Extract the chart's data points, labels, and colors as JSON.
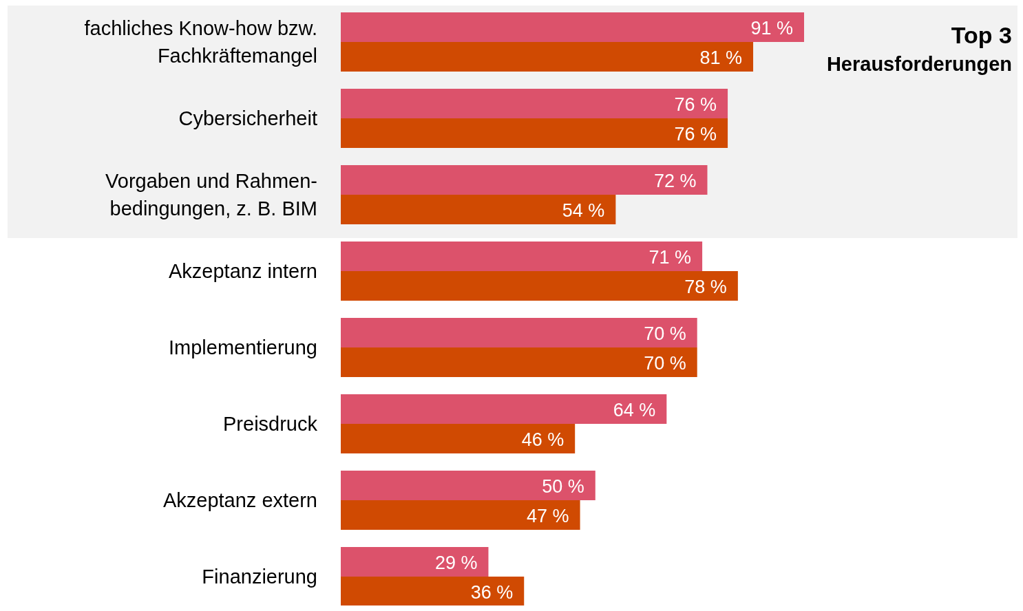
{
  "chart_data": {
    "type": "bar",
    "orientation": "horizontal",
    "categories": [
      "fachliches Know-how bzw.\nFachkräftemangel",
      "Cybersicherheit",
      "Vorgaben und Rahmen-\nbedingungen, z. B. BIM",
      "Akzeptanz intern",
      "Implementierung",
      "Preisdruck",
      "Akzeptanz extern",
      "Finanzierung"
    ],
    "series": [
      {
        "color": "#dc526b",
        "values": [
          91,
          76,
          72,
          71,
          70,
          64,
          50,
          29
        ],
        "value_labels": [
          "91 %",
          "76 %",
          "72 %",
          "71 %",
          "70 %",
          "64 %",
          "50 %",
          "29 %"
        ]
      },
      {
        "color": "#d04a02",
        "values": [
          81,
          76,
          54,
          78,
          70,
          46,
          47,
          36
        ],
        "value_labels": [
          "81 %",
          "76 %",
          "54 %",
          "78 %",
          "70 %",
          "46 %",
          "47 %",
          "36 %"
        ]
      }
    ],
    "bands": [
      {
        "axis": "y",
        "from": "fachliches Know-how bzw.\nFachkräftemangel",
        "to": "Vorgaben und Rahmen-\nbedingungen, z. B. BIM",
        "label": "Top 3 Herausforderungen",
        "color": "#f2f2f2"
      }
    ]
  }
}
